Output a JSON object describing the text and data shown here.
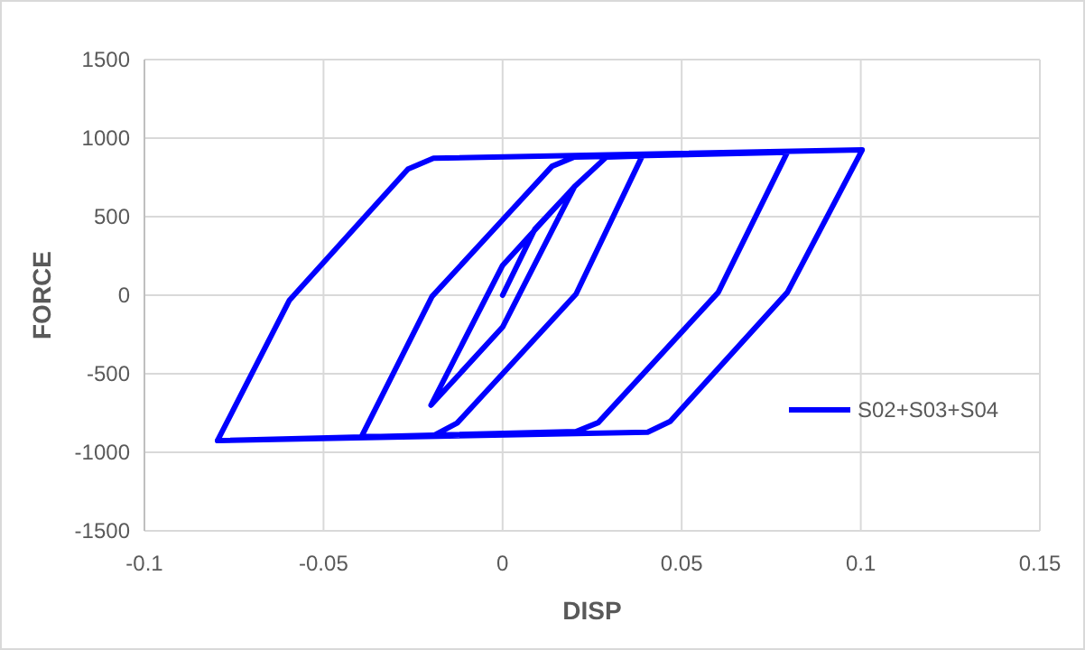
{
  "chart_data": {
    "type": "line",
    "xlabel": "DISP",
    "ylabel": "FORCE",
    "xlim": [
      -0.1,
      0.15
    ],
    "ylim": [
      -1500,
      1500
    ],
    "xticks": [
      -0.1,
      -0.05,
      0,
      0.05,
      0.1,
      0.15
    ],
    "yticks": [
      -1500,
      -1000,
      -500,
      0,
      500,
      1000,
      1500
    ],
    "grid": true,
    "legend": "right",
    "marker": "none",
    "line_style": "solid",
    "series": [
      {
        "name": "S02+S03+S04",
        "color": "#0000ff",
        "x": [
          0,
          0.009,
          0.02,
          0,
          -0.02,
          0,
          0.02,
          0.029,
          0.039,
          0.0205,
          -0.0127,
          -0.0197,
          -0.0394,
          -0.0197,
          0.0138,
          0.02,
          0.0795,
          0.0602,
          0.0267,
          0.0205,
          -0.0796,
          -0.0595,
          -0.0264,
          -0.0193,
          0.1004,
          0.0795,
          0.0468,
          0.0405,
          -0.0796
        ],
        "values": [
          0,
          420,
          688,
          -203,
          -700,
          190,
          690,
          880,
          887,
          7,
          -814,
          -899,
          -900,
          -8,
          821,
          879,
          910,
          18,
          -811,
          -868,
          -926,
          -31,
          803,
          872,
          925,
          18,
          -803,
          -872,
          -926
        ]
      }
    ]
  }
}
